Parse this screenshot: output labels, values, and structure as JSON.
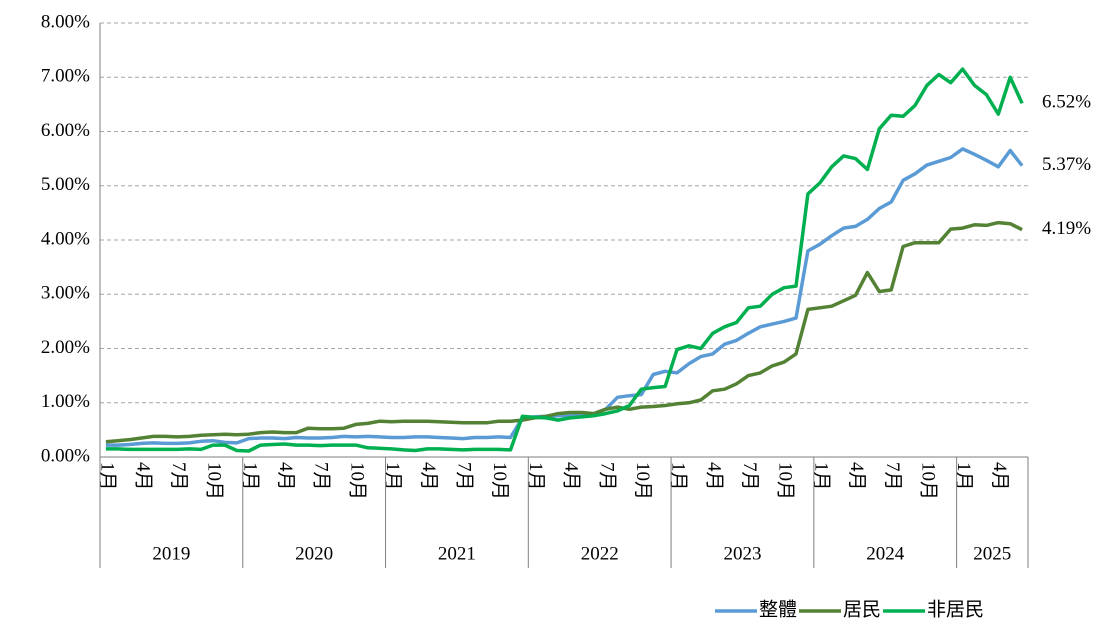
{
  "chart_data": {
    "type": "line",
    "categories": [
      "1月",
      null,
      null,
      "4月",
      null,
      null,
      "7月",
      null,
      null,
      "10月",
      null,
      null,
      "1月",
      null,
      null,
      "4月",
      null,
      null,
      "7月",
      null,
      null,
      "10月",
      null,
      null,
      "1月",
      null,
      null,
      "4月",
      null,
      null,
      "7月",
      null,
      null,
      "10月",
      null,
      null,
      "1月",
      null,
      null,
      "4月",
      null,
      null,
      "7月",
      null,
      null,
      "10月",
      null,
      null,
      "1月",
      null,
      null,
      "4月",
      null,
      null,
      "7月",
      null,
      null,
      "10月",
      null,
      null,
      "1月",
      null,
      null,
      "4月",
      null,
      null,
      "7月",
      null,
      null,
      "10月",
      null,
      null,
      "1月",
      null,
      null,
      "4月",
      null,
      null
    ],
    "years": [
      "2019",
      "2020",
      "2021",
      "2022",
      "2023",
      "2024",
      "2025"
    ],
    "ylim": [
      0,
      8
    ],
    "yticks": [
      {
        "value": 0,
        "label": "0.00%"
      },
      {
        "value": 1,
        "label": "1.00%"
      },
      {
        "value": 2,
        "label": "2.00%"
      },
      {
        "value": 3,
        "label": "3.00%"
      },
      {
        "value": 4,
        "label": "4.00%"
      },
      {
        "value": 5,
        "label": "5.00%"
      },
      {
        "value": 6,
        "label": "6.00%"
      },
      {
        "value": 7,
        "label": "7.00%"
      },
      {
        "value": 8,
        "label": "8.00%"
      }
    ],
    "grid": true,
    "legend": "bottom-right",
    "series": [
      {
        "name": "整體",
        "color": "#5b9bd5",
        "values": [
          0.22,
          0.22,
          0.23,
          0.25,
          0.26,
          0.25,
          0.25,
          0.26,
          0.29,
          0.3,
          0.27,
          0.26,
          0.34,
          0.35,
          0.35,
          0.34,
          0.36,
          0.35,
          0.35,
          0.36,
          0.38,
          0.37,
          0.38,
          0.37,
          0.36,
          0.36,
          0.37,
          0.37,
          0.36,
          0.35,
          0.34,
          0.36,
          0.36,
          0.37,
          0.36,
          0.72,
          0.74,
          0.75,
          0.76,
          0.77,
          0.78,
          0.8,
          0.88,
          1.1,
          1.13,
          1.15,
          1.52,
          1.58,
          1.55,
          1.72,
          1.85,
          1.9,
          2.08,
          2.15,
          2.28,
          2.4,
          2.45,
          2.5,
          2.56,
          3.8,
          3.92,
          4.08,
          4.22,
          4.25,
          4.38,
          4.58,
          4.7,
          5.1,
          5.22,
          5.38,
          5.45,
          5.52,
          5.68,
          5.58,
          5.47,
          5.35,
          5.65,
          5.37
        ],
        "value_labels": [
          null,
          null,
          null,
          null,
          null,
          null,
          null,
          null,
          null,
          null,
          null,
          null,
          null,
          null,
          null,
          null,
          null,
          null,
          null,
          null,
          null,
          null,
          null,
          null,
          null,
          null,
          null,
          null,
          null,
          null,
          null,
          null,
          null,
          null,
          null,
          null,
          null,
          null,
          null,
          null,
          null,
          null,
          null,
          null,
          null,
          null,
          null,
          null,
          null,
          null,
          null,
          null,
          null,
          null,
          null,
          null,
          null,
          null,
          null,
          null,
          null,
          null,
          null,
          null,
          null,
          null,
          null,
          null,
          null,
          null,
          null,
          null,
          null,
          null,
          null,
          null,
          null,
          "5.37%"
        ]
      },
      {
        "name": "居民",
        "color": "#548235",
        "values": [
          0.28,
          0.3,
          0.32,
          0.35,
          0.38,
          0.38,
          0.37,
          0.38,
          0.4,
          0.41,
          0.42,
          0.41,
          0.42,
          0.45,
          0.46,
          0.45,
          0.45,
          0.53,
          0.52,
          0.52,
          0.53,
          0.6,
          0.62,
          0.66,
          0.65,
          0.66,
          0.66,
          0.66,
          0.65,
          0.64,
          0.63,
          0.63,
          0.63,
          0.66,
          0.66,
          0.68,
          0.72,
          0.75,
          0.8,
          0.82,
          0.82,
          0.8,
          0.88,
          0.92,
          0.88,
          0.92,
          0.93,
          0.95,
          0.98,
          1.0,
          1.05,
          1.22,
          1.25,
          1.35,
          1.5,
          1.55,
          1.68,
          1.75,
          1.9,
          2.72,
          2.75,
          2.78,
          2.88,
          2.98,
          3.4,
          3.05,
          3.08,
          3.88,
          3.95,
          3.95,
          3.95,
          4.2,
          4.22,
          4.28,
          4.27,
          4.32,
          4.3,
          4.19
        ],
        "value_labels": [
          null,
          null,
          null,
          null,
          null,
          null,
          null,
          null,
          null,
          null,
          null,
          null,
          null,
          null,
          null,
          null,
          null,
          null,
          null,
          null,
          null,
          null,
          null,
          null,
          null,
          null,
          null,
          null,
          null,
          null,
          null,
          null,
          null,
          null,
          null,
          null,
          null,
          null,
          null,
          null,
          null,
          null,
          null,
          null,
          null,
          null,
          null,
          null,
          null,
          null,
          null,
          null,
          null,
          null,
          null,
          null,
          null,
          null,
          null,
          null,
          null,
          null,
          null,
          null,
          null,
          null,
          null,
          null,
          null,
          null,
          null,
          null,
          null,
          null,
          null,
          null,
          null,
          "4.19%"
        ]
      },
      {
        "name": "非居民",
        "color": "#00b050",
        "values": [
          0.15,
          0.15,
          0.14,
          0.14,
          0.14,
          0.14,
          0.14,
          0.15,
          0.14,
          0.22,
          0.22,
          0.12,
          0.11,
          0.22,
          0.23,
          0.24,
          0.22,
          0.22,
          0.21,
          0.22,
          0.22,
          0.22,
          0.17,
          0.16,
          0.15,
          0.13,
          0.12,
          0.15,
          0.15,
          0.14,
          0.13,
          0.14,
          0.14,
          0.14,
          0.13,
          0.75,
          0.73,
          0.72,
          0.68,
          0.72,
          0.74,
          0.76,
          0.8,
          0.85,
          0.95,
          1.25,
          1.28,
          1.3,
          1.98,
          2.05,
          2.0,
          2.28,
          2.4,
          2.48,
          2.75,
          2.78,
          3.0,
          3.12,
          3.15,
          4.85,
          5.05,
          5.35,
          5.55,
          5.5,
          5.3,
          6.05,
          6.3,
          6.28,
          6.48,
          6.85,
          7.05,
          6.9,
          7.15,
          6.85,
          6.68,
          6.32,
          7.0,
          6.52
        ],
        "value_labels": [
          null,
          null,
          null,
          null,
          null,
          null,
          null,
          null,
          null,
          null,
          null,
          null,
          null,
          null,
          null,
          null,
          null,
          null,
          null,
          null,
          null,
          null,
          null,
          null,
          null,
          null,
          null,
          null,
          null,
          null,
          null,
          null,
          null,
          null,
          null,
          null,
          null,
          null,
          null,
          null,
          null,
          null,
          null,
          null,
          null,
          null,
          null,
          null,
          null,
          null,
          null,
          null,
          null,
          null,
          null,
          null,
          null,
          null,
          null,
          null,
          null,
          null,
          null,
          null,
          null,
          null,
          null,
          null,
          null,
          null,
          null,
          null,
          null,
          null,
          null,
          null,
          null,
          "6.52%"
        ]
      }
    ]
  }
}
